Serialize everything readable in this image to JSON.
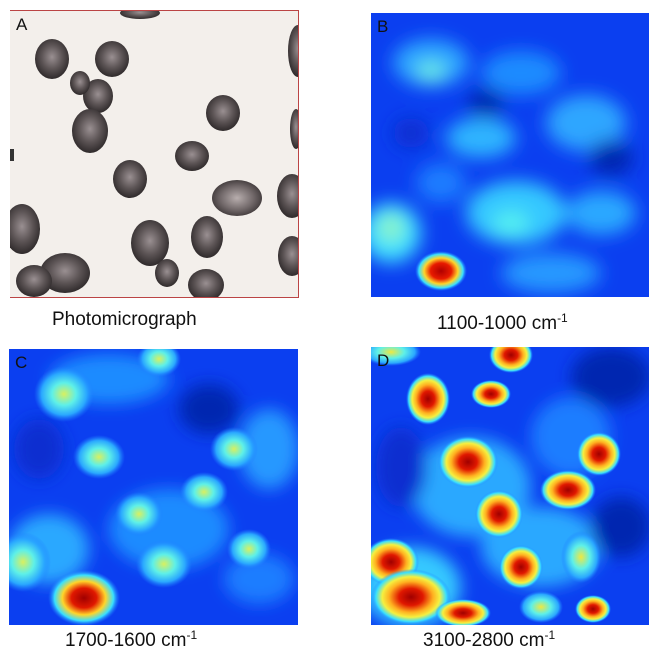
{
  "panels": [
    {
      "letter": "A",
      "caption": "Photomicrograph",
      "units": "",
      "sup": ""
    },
    {
      "letter": "B",
      "caption": "1100-1000",
      "units": " cm",
      "sup": "-1"
    },
    {
      "letter": "C",
      "caption": "1700-1600",
      "units": " cm",
      "sup": "-1"
    },
    {
      "letter": "D",
      "caption": "3100-2800",
      "units": " cm",
      "sup": "-1"
    }
  ],
  "colors": {
    "map_background": "#0a2be0",
    "map_low": "#1f7dff",
    "map_mid": "#39e0ff",
    "map_high": "#ffe13a",
    "map_peak": "#c80000",
    "photo_background": "#f3efeb",
    "photo_cell": "#6e6565"
  }
}
